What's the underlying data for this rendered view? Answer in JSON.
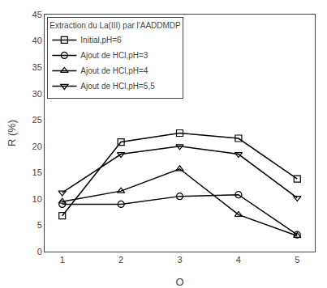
{
  "chart_data": {
    "type": "line",
    "x": [
      1,
      2,
      3,
      4,
      5
    ],
    "series": [
      {
        "name": "Initial,pH=6",
        "values": [
          6.8,
          20.8,
          22.5,
          21.5,
          13.8
        ],
        "color": "#000000",
        "marker": "square"
      },
      {
        "name": "Ajout de HCl,pH=3",
        "values": [
          9.0,
          9.0,
          10.5,
          10.8,
          3.2
        ],
        "color": "#000000",
        "marker": "circle"
      },
      {
        "name": "Ajout de HCl,pH=4",
        "values": [
          9.5,
          11.5,
          15.7,
          7.0,
          3.0
        ],
        "color": "#000000",
        "marker": "triangle-up"
      },
      {
        "name": "Ajout de HCl,pH=5,5",
        "values": [
          11.2,
          18.5,
          20.0,
          18.5,
          10.2
        ],
        "color": "#000000",
        "marker": "triangle-down"
      }
    ],
    "xlabel": "O",
    "ylabel": "R (%)",
    "xlim": [
      0.7,
      5.3
    ],
    "ylim": [
      0,
      45
    ],
    "xticks": [
      1,
      2,
      3,
      4,
      5
    ],
    "yticks": [
      0,
      5,
      10,
      15,
      20,
      25,
      30,
      35,
      40,
      45
    ],
    "legend_title": "Extraction du La(III) par l'AADDMDP",
    "legend": "upper left",
    "grid": false
  }
}
